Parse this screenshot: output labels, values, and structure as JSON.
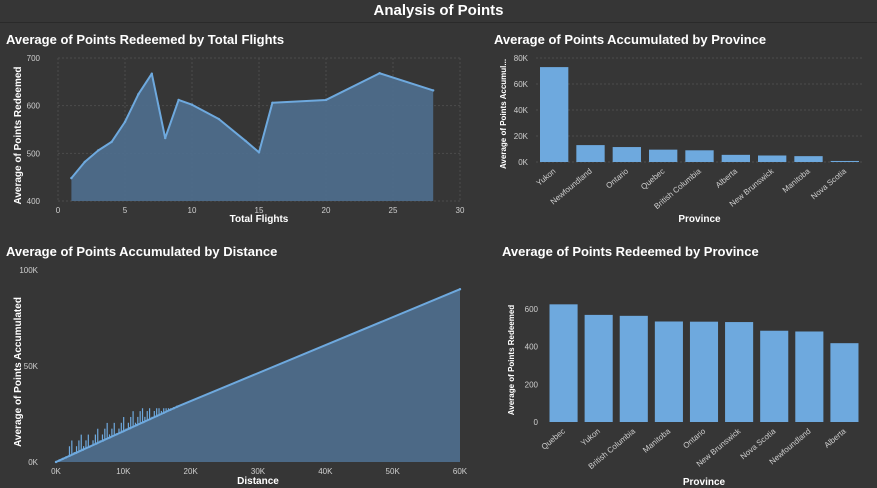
{
  "dashboard": {
    "title": "Analysis of Points"
  },
  "colors": {
    "background": "#363636",
    "series": "#6ea9de",
    "area_fill": "#4f6f8f",
    "grid": "#4c4c4c"
  },
  "chart_data": [
    {
      "id": "redeemed_by_flights",
      "type": "area",
      "title": "Average of Points Redeemed by Total Flights",
      "xlabel": "Total Flights",
      "ylabel": "Average of Points Redeemed",
      "xlim": [
        0,
        30
      ],
      "ylim": [
        400,
        700
      ],
      "xticks": [
        0,
        5,
        10,
        15,
        20,
        25,
        30
      ],
      "yticks": [
        400,
        500,
        600,
        700
      ],
      "x": [
        1,
        2,
        3,
        4,
        5,
        6,
        7,
        8,
        9,
        10,
        12,
        14,
        15,
        16,
        20,
        24,
        28
      ],
      "y": [
        448,
        482,
        506,
        524,
        566,
        624,
        667,
        532,
        612,
        602,
        572,
        526,
        502,
        606,
        612,
        668,
        632
      ],
      "grid": true
    },
    {
      "id": "accumulated_by_province",
      "type": "bar",
      "title": "Average of Points Accumulated by Province",
      "xlabel": "Province",
      "ylabel": "Average of Points Accumul...",
      "ylim": [
        0,
        80000
      ],
      "yticks": [
        0,
        20000,
        40000,
        60000,
        80000
      ],
      "ytick_labels": [
        "0K",
        "20K",
        "40K",
        "60K",
        "80K"
      ],
      "categories": [
        "Yukon",
        "Newfoundland",
        "Ontario",
        "Quebec",
        "British Columbia",
        "Alberta",
        "New Brunswick",
        "Manitoba",
        "Nova Scotia"
      ],
      "values": [
        73000,
        13000,
        11500,
        9500,
        9000,
        5500,
        5000,
        4500,
        800
      ],
      "grid": true
    },
    {
      "id": "accumulated_by_distance",
      "type": "area",
      "title": "Average of Points Accumulated by Distance",
      "xlabel": "Distance",
      "ylabel": "Average of Points Accumulated",
      "xlim": [
        0,
        60000
      ],
      "ylim": [
        0,
        100000
      ],
      "xticks": [
        0,
        10000,
        20000,
        30000,
        40000,
        50000,
        60000
      ],
      "xtick_labels": [
        "0K",
        "10K",
        "20K",
        "30K",
        "40K",
        "50K",
        "60K"
      ],
      "yticks": [
        0,
        50000,
        100000
      ],
      "ytick_labels": [
        "0K",
        "50K",
        "100K"
      ],
      "x": [
        0,
        500,
        1000,
        1500,
        2000,
        3000,
        4000,
        5000,
        6000,
        7000,
        8000,
        9000,
        10000,
        11000,
        12000,
        13000,
        14000,
        15000,
        16000,
        17000,
        17500,
        18000,
        60000
      ],
      "y": [
        0,
        800,
        1600,
        2400,
        3200,
        4800,
        6400,
        8000,
        9600,
        11200,
        12800,
        14400,
        16000,
        17600,
        19200,
        20800,
        22400,
        24000,
        25600,
        27200,
        28000,
        28800,
        90000
      ],
      "grid": false
    },
    {
      "id": "redeemed_by_province",
      "type": "bar",
      "title": "Average of Points Redeemed by Province",
      "xlabel": "Province",
      "ylabel": "Average of Points Redeemed",
      "ylim": [
        0,
        700
      ],
      "yticks": [
        0,
        200,
        400,
        600
      ],
      "ytick_labels": [
        "0",
        "200",
        "400",
        "600"
      ],
      "categories": [
        "Quebec",
        "Yukon",
        "British Columbia",
        "Manitoba",
        "Ontario",
        "New Brunswick",
        "Nova Scotia",
        "Newfoundland",
        "Alberta"
      ],
      "values": [
        624,
        568,
        563,
        533,
        532,
        530,
        484,
        480,
        418
      ],
      "grid": false
    }
  ]
}
